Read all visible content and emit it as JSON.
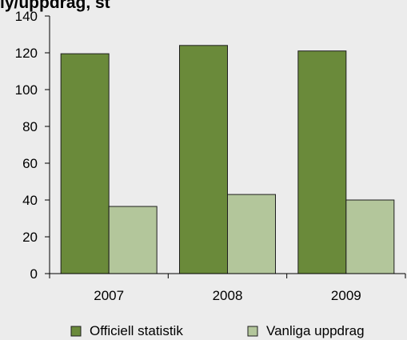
{
  "colors": {
    "page_background": "#ececec",
    "plot_background": "#ececec",
    "axis": "#000000",
    "series_1": "#6a8a3a",
    "series_2": "#b3c69b",
    "bar_outline": "#1e1e1e"
  },
  "cropped_title": "ly/uppdrag, st",
  "chart_data": {
    "type": "bar",
    "categories": [
      "2007",
      "2008",
      "2009"
    ],
    "series": [
      {
        "name": "Officiell statistik",
        "values": [
          119.5,
          124,
          121
        ],
        "color": "#6a8a3a"
      },
      {
        "name": "Vanliga uppdrag",
        "values": [
          36.5,
          43,
          40
        ],
        "color": "#b3c69b"
      }
    ],
    "ylim": [
      0,
      140
    ],
    "yticks": [
      0,
      20,
      40,
      60,
      80,
      100,
      120,
      140
    ],
    "grid": false,
    "legend": "bottom",
    "title": "",
    "xlabel": "",
    "ylabel": ""
  }
}
